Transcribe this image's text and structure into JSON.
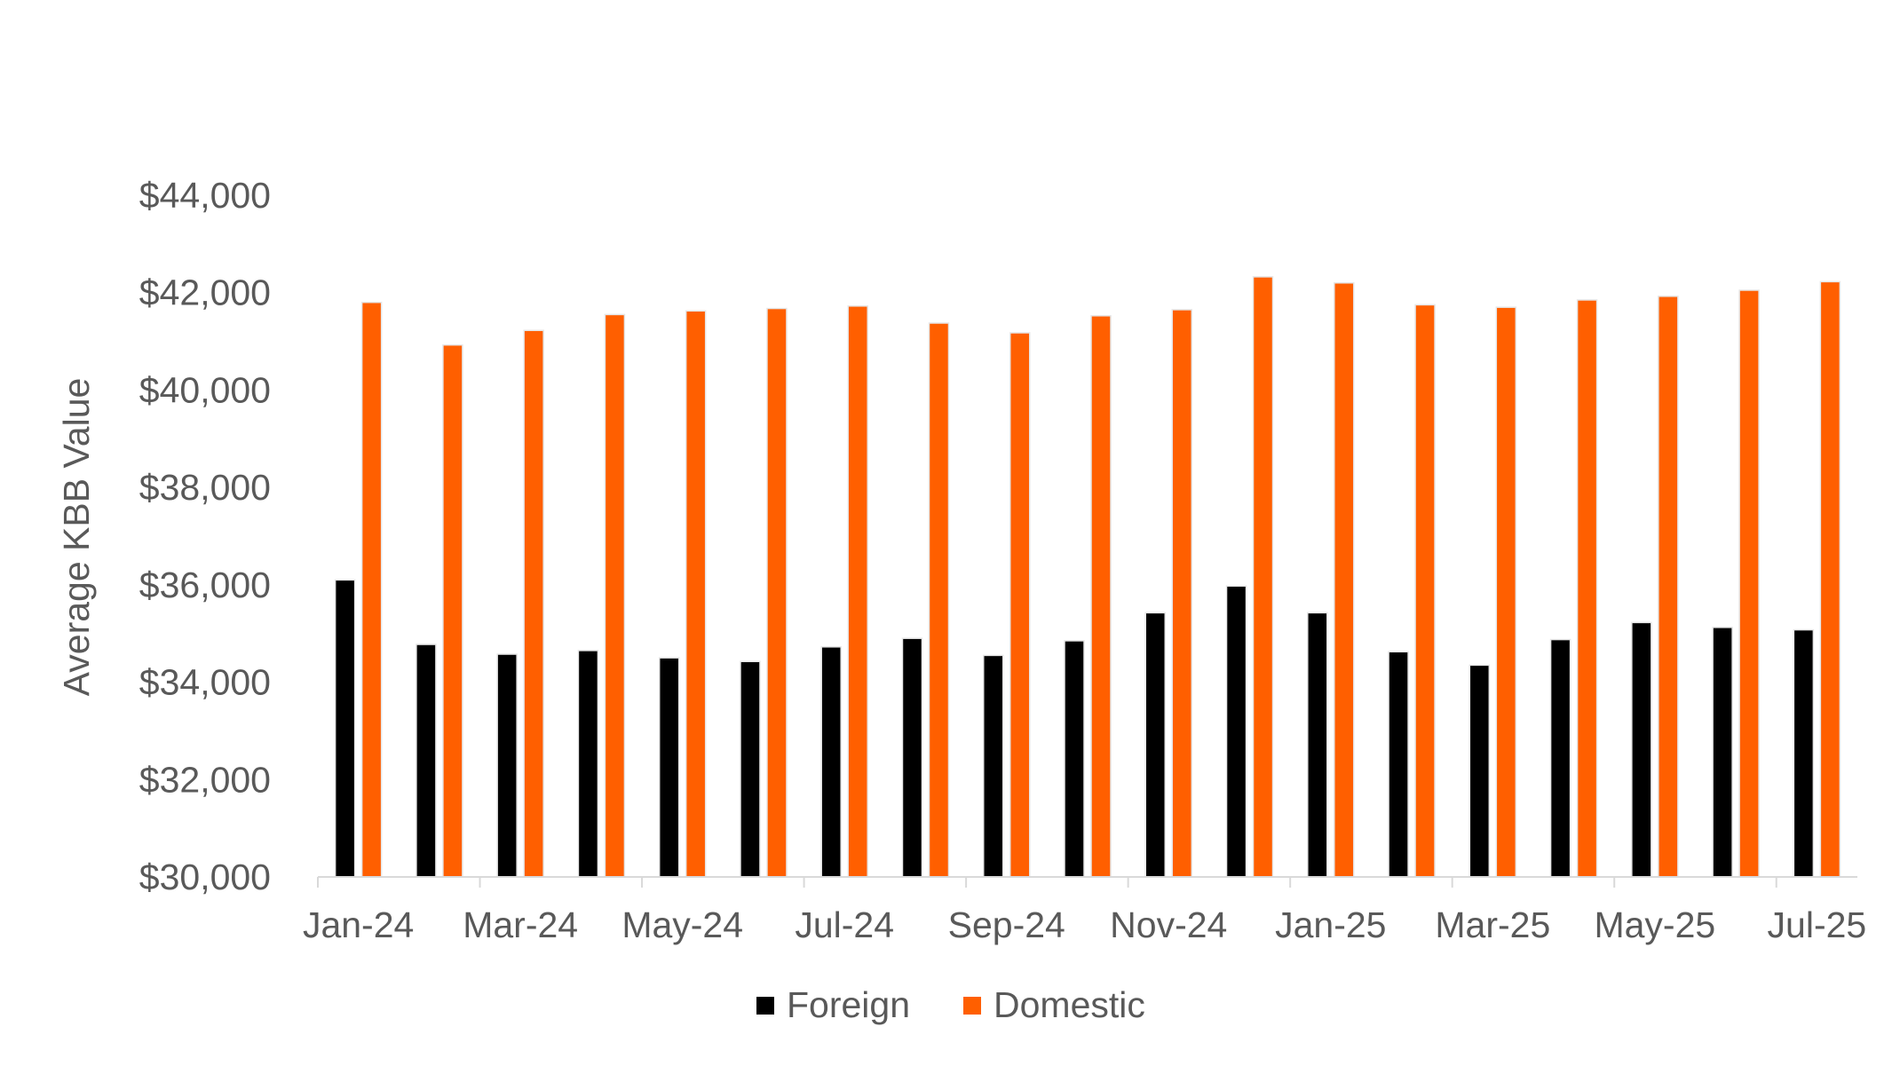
{
  "chart_data": {
    "type": "bar",
    "title": "",
    "xlabel": "",
    "ylabel": "Average KBB Value",
    "ylim": [
      30000,
      44000
    ],
    "yticks": [
      "$30,000",
      "$32,000",
      "$34,000",
      "$36,000",
      "$38,000",
      "$40,000",
      "$42,000",
      "$44,000"
    ],
    "ytick_values": [
      30000,
      32000,
      34000,
      36000,
      38000,
      40000,
      42000,
      44000
    ],
    "grid": false,
    "legend_position": "bottom",
    "categories": [
      "Jan-24",
      "Feb-24",
      "Mar-24",
      "Apr-24",
      "May-24",
      "Jun-24",
      "Jul-24",
      "Aug-24",
      "Sep-24",
      "Oct-24",
      "Nov-24",
      "Dec-24",
      "Jan-25",
      "Feb-25",
      "Mar-25",
      "Apr-25",
      "May-25",
      "Jun-25",
      "Jul-25"
    ],
    "xtick_labels": [
      "Jan-24",
      "Mar-24",
      "May-24",
      "Jul-24",
      "Sep-24",
      "Nov-24",
      "Jan-25",
      "Mar-25",
      "May-25",
      "Jul-25"
    ],
    "series": [
      {
        "name": "Foreign",
        "color": "#000000",
        "values": [
          36100,
          34775,
          34575,
          34650,
          34500,
          34425,
          34725,
          34900,
          34550,
          34850,
          35425,
          35975,
          35425,
          34625,
          34350,
          34875,
          35225,
          35125,
          35075
        ]
      },
      {
        "name": "Domestic",
        "color": "#FF5F00",
        "values": [
          41800,
          40925,
          41225,
          41550,
          41625,
          41675,
          41725,
          41375,
          41175,
          41525,
          41650,
          42325,
          42200,
          41750,
          41700,
          41850,
          41925,
          42050,
          42225
        ]
      }
    ]
  }
}
